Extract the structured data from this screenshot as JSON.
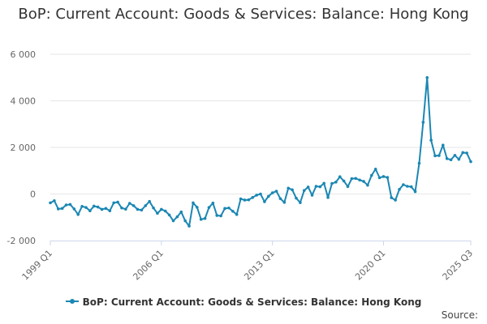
{
  "chart_data": {
    "type": "line",
    "title": "BoP: Current Account: Goods & Services: Balance: Hong Kong",
    "xlabel": "",
    "ylabel": "",
    "start_period": "1999 Q1",
    "end_period": "2025 Q3",
    "x_tick_labels": [
      "1999 Q1",
      "2006 Q1",
      "2013 Q1",
      "2020 Q1",
      "2025 Q3"
    ],
    "y_tick_labels": [
      "-2 000",
      "0",
      "2 000",
      "4 000",
      "6 000"
    ],
    "ylim": [
      -2000,
      6000
    ],
    "grid": true,
    "legend_position": "bottom",
    "series": [
      {
        "name": "BoP: Current Account: Goods & Services: Balance: Hong Kong",
        "color": "#1b87b3",
        "values": [
          -380,
          -290,
          -640,
          -620,
          -470,
          -450,
          -640,
          -880,
          -530,
          -580,
          -720,
          -520,
          -560,
          -660,
          -620,
          -720,
          -380,
          -350,
          -600,
          -650,
          -400,
          -500,
          -660,
          -690,
          -500,
          -320,
          -600,
          -830,
          -660,
          -730,
          -900,
          -1150,
          -980,
          -770,
          -1150,
          -1380,
          -380,
          -570,
          -1090,
          -1050,
          -580,
          -390,
          -920,
          -940,
          -620,
          -600,
          -740,
          -880,
          -210,
          -260,
          -250,
          -150,
          -50,
          0,
          -330,
          -100,
          50,
          120,
          -200,
          -360,
          250,
          180,
          -180,
          -370,
          150,
          300,
          -50,
          330,
          310,
          460,
          -150,
          450,
          510,
          740,
          560,
          320,
          660,
          670,
          600,
          540,
          380,
          800,
          1070,
          700,
          750,
          710,
          -160,
          -260,
          200,
          400,
          330,
          310,
          100,
          1320,
          3080,
          5000,
          2310,
          1640,
          1650,
          2100,
          1520,
          1470,
          1660,
          1490,
          1780,
          1760,
          1390
        ]
      }
    ]
  },
  "credits": "Source:"
}
